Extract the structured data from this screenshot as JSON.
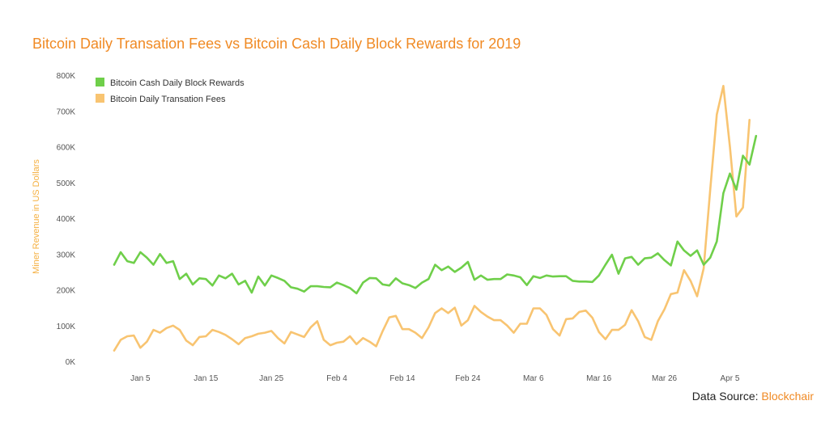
{
  "title": "Bitcoin Daily Transation Fees vs Bitcoin Cash Daily Block Rewards for 2019",
  "source": {
    "label": "Data Source:",
    "name": "Blockchair"
  },
  "colors": {
    "title": "#f08a24",
    "bch": "#6fcf4a",
    "btc": "#f8c471",
    "ylabel": "#f5b041"
  },
  "chart_data": {
    "type": "line",
    "ylabel": "Miner Revenue in US Dollars",
    "xlabel": "",
    "ylim": [
      0,
      800000
    ],
    "yticks": [
      {
        "value": 0,
        "label": "0K"
      },
      {
        "value": 100000,
        "label": "100K"
      },
      {
        "value": 200000,
        "label": "200K"
      },
      {
        "value": 300000,
        "label": "300K"
      },
      {
        "value": 400000,
        "label": "400K"
      },
      {
        "value": 500000,
        "label": "500K"
      },
      {
        "value": 600000,
        "label": "600K"
      },
      {
        "value": 700000,
        "label": "700K"
      },
      {
        "value": 800000,
        "label": "800K"
      }
    ],
    "xticks": [
      {
        "day": 5,
        "label": "Jan 5"
      },
      {
        "day": 15,
        "label": "Jan 15"
      },
      {
        "day": 25,
        "label": "Jan 25"
      },
      {
        "day": 35,
        "label": "Feb 4"
      },
      {
        "day": 45,
        "label": "Feb 14"
      },
      {
        "day": 55,
        "label": "Feb 24"
      },
      {
        "day": 65,
        "label": "Mar 6"
      },
      {
        "day": 75,
        "label": "Mar 16"
      },
      {
        "day": 85,
        "label": "Mar 26"
      },
      {
        "day": 95,
        "label": "Apr 5"
      }
    ],
    "legend": "top-left",
    "series": [
      {
        "name": "Bitcoin Cash Daily Block Rewards",
        "start": "2019-01-01",
        "values": [
          270000,
          305000,
          280000,
          275000,
          305000,
          290000,
          270000,
          300000,
          275000,
          280000,
          230000,
          245000,
          215000,
          232000,
          230000,
          212000,
          240000,
          232000,
          245000,
          215000,
          225000,
          192000,
          237000,
          212000,
          240000,
          233000,
          225000,
          207000,
          203000,
          195000,
          210000,
          210000,
          208000,
          207000,
          220000,
          213000,
          205000,
          190000,
          220000,
          233000,
          232000,
          215000,
          212000,
          232000,
          218000,
          213000,
          205000,
          220000,
          230000,
          270000,
          255000,
          265000,
          250000,
          262000,
          278000,
          228000,
          240000,
          228000,
          230000,
          230000,
          243000,
          240000,
          235000,
          213000,
          238000,
          233000,
          240000,
          237000,
          238000,
          238000,
          225000,
          223000,
          223000,
          222000,
          240000,
          270000,
          298000,
          245000,
          288000,
          292000,
          270000,
          288000,
          290000,
          302000,
          283000,
          268000,
          335000,
          310000,
          295000,
          310000,
          270000,
          290000,
          335000,
          470000,
          525000,
          480000,
          575000,
          550000,
          630000
        ]
      },
      {
        "name": "Bitcoin Daily Transation Fees",
        "start": "2019-01-01",
        "values": [
          30000,
          60000,
          70000,
          72000,
          38000,
          55000,
          88000,
          80000,
          93000,
          100000,
          88000,
          58000,
          45000,
          68000,
          70000,
          88000,
          82000,
          74000,
          62000,
          48000,
          65000,
          70000,
          77000,
          80000,
          85000,
          65000,
          50000,
          82000,
          75000,
          68000,
          95000,
          112000,
          60000,
          45000,
          52000,
          55000,
          70000,
          48000,
          65000,
          55000,
          42000,
          85000,
          123000,
          127000,
          90000,
          90000,
          80000,
          65000,
          95000,
          135000,
          148000,
          135000,
          150000,
          100000,
          115000,
          155000,
          138000,
          125000,
          115000,
          115000,
          100000,
          80000,
          105000,
          105000,
          148000,
          148000,
          130000,
          90000,
          72000,
          118000,
          120000,
          138000,
          142000,
          122000,
          82000,
          62000,
          88000,
          88000,
          102000,
          143000,
          112000,
          68000,
          60000,
          112000,
          145000,
          188000,
          192000,
          255000,
          225000,
          182000,
          260000,
          480000,
          690000,
          770000,
          600000,
          405000,
          430000,
          675000
        ]
      }
    ]
  }
}
